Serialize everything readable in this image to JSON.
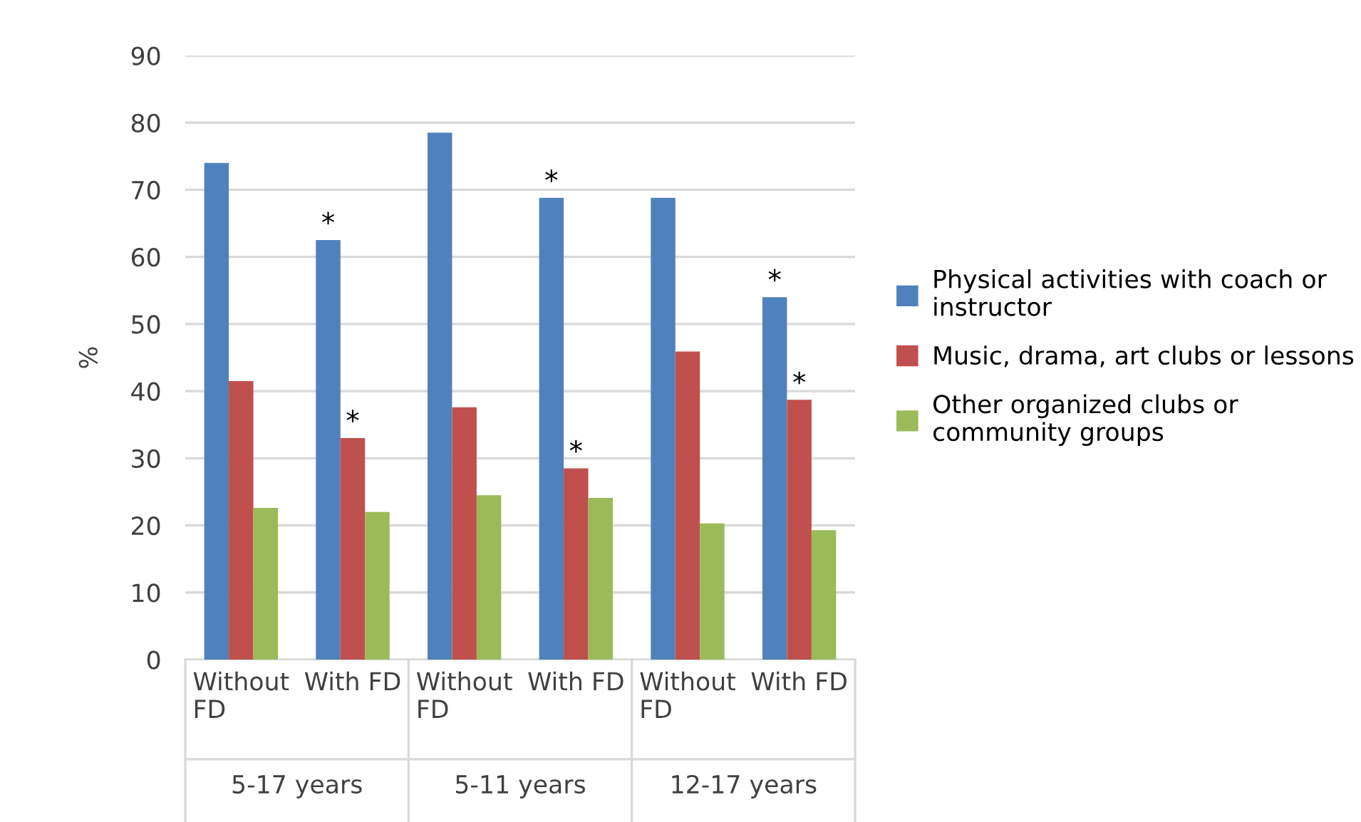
{
  "chart_data": {
    "type": "bar",
    "ylabel": "%",
    "categories": [
      "Without FD",
      "With FD",
      "Without FD",
      "With FD",
      "Without FD",
      "With FD"
    ],
    "series": [
      {
        "name": "Physical activities with coach or instructor",
        "color": "#4f81bd",
        "values": [
          74,
          62.5,
          78.5,
          68.8,
          68.8,
          54
        ],
        "value_labels": [
          null,
          "*",
          null,
          "*",
          null,
          "*"
        ]
      },
      {
        "name": "Music, drama, art clubs or lessons",
        "color": "#c0504d",
        "values": [
          41.5,
          33,
          37.6,
          28.5,
          45.9,
          38.7
        ],
        "value_labels": [
          null,
          "*",
          null,
          "*",
          null,
          "*"
        ]
      },
      {
        "name": "Other organized clubs or community groups",
        "color": "#9bbb59",
        "values": [
          22.6,
          22,
          24.5,
          24.1,
          20.3,
          19.3
        ],
        "value_labels": [
          null,
          null,
          null,
          null,
          null,
          null
        ]
      }
    ],
    "annotations": [
      "5-17 years",
      "5-11 years",
      "12-17 years"
    ],
    "ylim": [
      0,
      90
    ],
    "yticks": [
      0,
      10,
      20,
      30,
      40,
      50,
      60,
      70,
      80,
      90
    ],
    "grid": "y",
    "legend": "right"
  }
}
